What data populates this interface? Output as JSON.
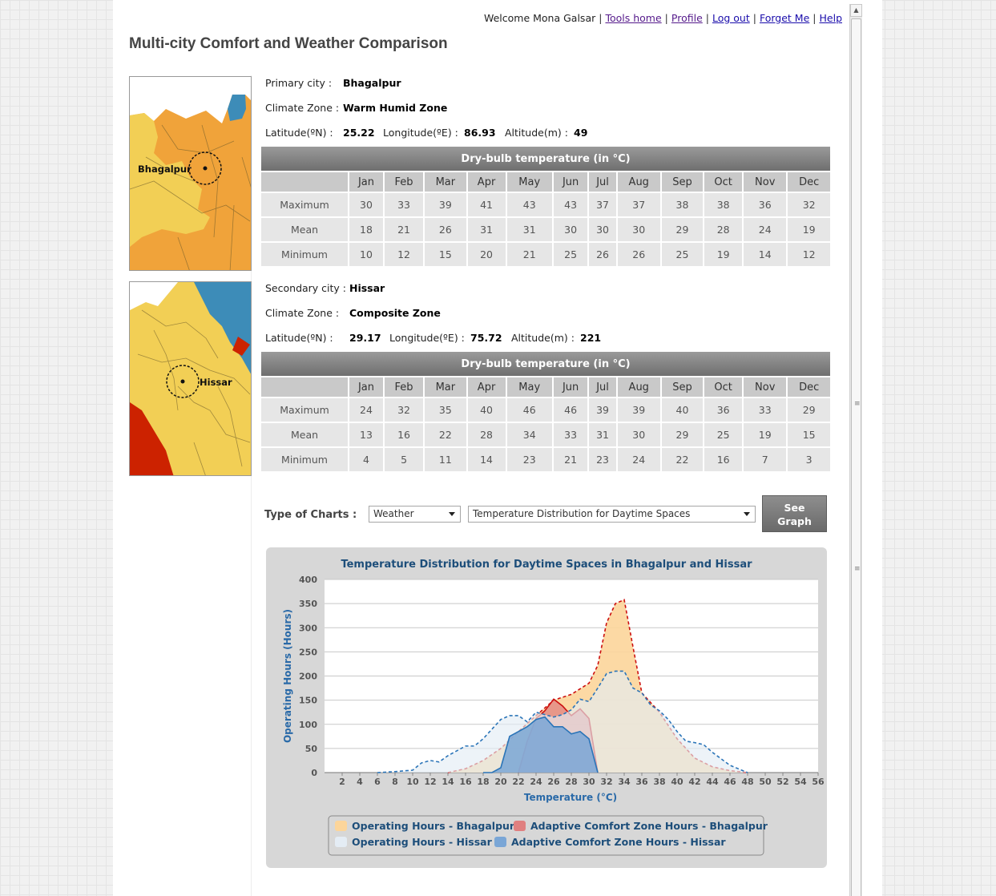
{
  "nav": {
    "welcome": "Welcome Mona Galsar",
    "links": [
      "Tools home",
      "Profile",
      "Log out",
      "Forget Me",
      "Help"
    ]
  },
  "page_title": "Multi-city Comfort and Weather Comparison",
  "months": [
    "Jan",
    "Feb",
    "Mar",
    "Apr",
    "May",
    "Jun",
    "Jul",
    "Aug",
    "Sep",
    "Oct",
    "Nov",
    "Dec"
  ],
  "primary": {
    "city_label": "Primary city :",
    "city": "Bhagalpur",
    "zone_label": "Climate Zone :",
    "zone": "Warm Humid Zone",
    "lat_label": "Latitude(ºN) :",
    "lat": "25.22",
    "lon_label": "Longitude(ºE) :",
    "lon": "86.93",
    "alt_label": "Altitude(m) :",
    "alt": "49",
    "table_title": "Dry-bulb temperature (in °C)",
    "rows": [
      {
        "label": "Maximum",
        "values": [
          30,
          33,
          39,
          41,
          43,
          43,
          37,
          37,
          38,
          38,
          36,
          32
        ]
      },
      {
        "label": "Mean",
        "values": [
          18,
          21,
          26,
          31,
          31,
          30,
          30,
          30,
          29,
          28,
          24,
          19
        ]
      },
      {
        "label": "Minimum",
        "values": [
          10,
          12,
          15,
          20,
          21,
          25,
          26,
          26,
          25,
          19,
          14,
          12
        ]
      }
    ],
    "map_label": "Bhagalpur"
  },
  "secondary": {
    "city_label": "Secondary city :",
    "city": "Hissar",
    "zone_label": "Climate Zone :",
    "zone": "Composite Zone",
    "lat_label": "Latitude(ºN) :",
    "lat": "29.17",
    "lon_label": "Longitude(ºE) :",
    "lon": "75.72",
    "alt_label": "Altitude(m) :",
    "alt": "221",
    "table_title": "Dry-bulb temperature (in °C)",
    "rows": [
      {
        "label": "Maximum",
        "values": [
          24,
          32,
          35,
          40,
          46,
          46,
          39,
          39,
          40,
          36,
          33,
          29
        ]
      },
      {
        "label": "Mean",
        "values": [
          13,
          16,
          22,
          28,
          34,
          33,
          31,
          30,
          29,
          25,
          19,
          15
        ]
      },
      {
        "label": "Minimum",
        "values": [
          4,
          5,
          11,
          14,
          23,
          21,
          23,
          24,
          22,
          16,
          7,
          3
        ]
      }
    ],
    "map_label": "Hissar"
  },
  "controls": {
    "type_label": "Type of Charts :",
    "type_value": "Weather",
    "chart_value": "Temperature Distribution for Daytime Spaces",
    "button_line1": "See",
    "button_line2": "Graph"
  },
  "colors": {
    "bhagalpur_fill": "#fcd59a",
    "bhagalpur_line": "#cc1010",
    "bhagalpur_comfort": "#e08080",
    "hissar_fill": "#e4ecf4",
    "hissar_line": "#2a74b8",
    "hissar_comfort": "#7aa6d6",
    "map_yellow": "#f2cf55",
    "map_orange": "#f0a33a",
    "map_blue": "#3d8cb8",
    "map_red": "#cc2200"
  },
  "chart_data": {
    "type": "area",
    "title": "Temperature Distribution for Daytime Spaces in Bhagalpur and Hissar",
    "xlabel": "Temperature (°C)",
    "ylabel": "Operating Hours (Hours)",
    "xlim": [
      0,
      56
    ],
    "ylim": [
      0,
      400
    ],
    "xticks": [
      2,
      4,
      6,
      8,
      10,
      12,
      14,
      16,
      18,
      20,
      22,
      24,
      26,
      28,
      30,
      32,
      34,
      36,
      38,
      40,
      42,
      44,
      46,
      48,
      50,
      52,
      54,
      56
    ],
    "yticks": [
      0,
      50,
      100,
      150,
      200,
      250,
      300,
      350,
      400
    ],
    "grid": true,
    "legend_position": "bottom",
    "series": [
      {
        "name": "Operating Hours - Bhagalpur",
        "style": "dashed-area",
        "points": [
          [
            14,
            0
          ],
          [
            16,
            8
          ],
          [
            18,
            25
          ],
          [
            20,
            50
          ],
          [
            22,
            85
          ],
          [
            24,
            118
          ],
          [
            26,
            150
          ],
          [
            28,
            162
          ],
          [
            30,
            185
          ],
          [
            31,
            222
          ],
          [
            32,
            310
          ],
          [
            33,
            350
          ],
          [
            34,
            358
          ],
          [
            35,
            260
          ],
          [
            36,
            165
          ],
          [
            38,
            125
          ],
          [
            40,
            70
          ],
          [
            42,
            30
          ],
          [
            44,
            12
          ],
          [
            46,
            4
          ],
          [
            48,
            0
          ]
        ]
      },
      {
        "name": "Adaptive Comfort Zone Hours - Bhagalpur",
        "style": "solid-area",
        "points": [
          [
            22,
            0
          ],
          [
            23,
            65
          ],
          [
            24,
            112
          ],
          [
            25,
            128
          ],
          [
            26,
            152
          ],
          [
            27,
            138
          ],
          [
            28,
            118
          ],
          [
            29,
            132
          ],
          [
            30,
            112
          ],
          [
            31,
            0
          ]
        ]
      },
      {
        "name": "Operating Hours - Hissar",
        "style": "dashed-area",
        "points": [
          [
            6,
            0
          ],
          [
            8,
            2
          ],
          [
            10,
            5
          ],
          [
            11,
            20
          ],
          [
            12,
            25
          ],
          [
            13,
            22
          ],
          [
            14,
            35
          ],
          [
            16,
            55
          ],
          [
            17,
            55
          ],
          [
            18,
            70
          ],
          [
            20,
            110
          ],
          [
            21,
            118
          ],
          [
            22,
            118
          ],
          [
            23,
            105
          ],
          [
            24,
            125
          ],
          [
            25,
            120
          ],
          [
            26,
            115
          ],
          [
            27,
            120
          ],
          [
            28,
            130
          ],
          [
            29,
            152
          ],
          [
            30,
            147
          ],
          [
            31,
            175
          ],
          [
            32,
            205
          ],
          [
            33,
            210
          ],
          [
            34,
            210
          ],
          [
            35,
            175
          ],
          [
            36,
            165
          ],
          [
            37,
            140
          ],
          [
            38,
            128
          ],
          [
            39,
            110
          ],
          [
            40,
            85
          ],
          [
            41,
            65
          ],
          [
            42,
            62
          ],
          [
            43,
            58
          ],
          [
            44,
            42
          ],
          [
            46,
            15
          ],
          [
            48,
            0
          ]
        ]
      },
      {
        "name": "Adaptive Comfort Zone Hours - Hissar",
        "style": "solid-area",
        "points": [
          [
            18,
            0
          ],
          [
            19,
            0
          ],
          [
            20,
            10
          ],
          [
            21,
            75
          ],
          [
            22,
            85
          ],
          [
            23,
            95
          ],
          [
            24,
            110
          ],
          [
            25,
            115
          ],
          [
            26,
            95
          ],
          [
            27,
            95
          ],
          [
            28,
            80
          ],
          [
            29,
            85
          ],
          [
            30,
            70
          ],
          [
            31,
            0
          ]
        ]
      }
    ]
  }
}
